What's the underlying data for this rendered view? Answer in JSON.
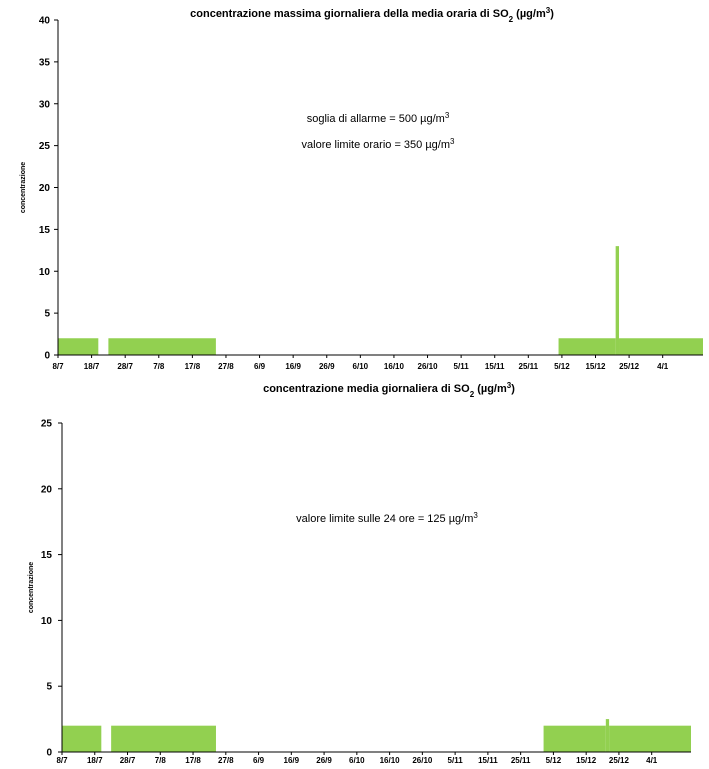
{
  "chart_data": [
    {
      "type": "bar",
      "title": "concentrazione massima giornaliera della media oraria di SO",
      "title_sub": "2",
      "title_unit": " (µg/m",
      "title_sup": "3",
      "title_end": ")",
      "ylabel": "concentrazione",
      "ylim": [
        0,
        40
      ],
      "yticks": [
        0,
        5,
        10,
        15,
        20,
        25,
        30,
        35,
        40
      ],
      "xlabels": [
        "8/7",
        "18/7",
        "28/7",
        "7/8",
        "17/8",
        "27/8",
        "6/9",
        "16/9",
        "26/9",
        "6/10",
        "16/10",
        "26/10",
        "5/11",
        "15/11",
        "25/11",
        "5/12",
        "15/12",
        "25/12",
        "4/1"
      ],
      "annotations": [
        {
          "text": "soglia di allarme  = 500 µg/m",
          "sup": "3"
        },
        {
          "text": "valore limite  orario = 350 µg/m",
          "sup": "3"
        }
      ],
      "bar_color": "#92d050",
      "series": [
        {
          "segments": [
            {
              "from": "8/7",
              "to": "20/7",
              "value": 2
            },
            {
              "from": "23/7",
              "to": "24/8",
              "value": 2
            },
            {
              "from": "4/12",
              "to": "21/12",
              "value": 2
            },
            {
              "from": "21/12",
              "to": "22/12",
              "value": 13
            },
            {
              "from": "22/12",
              "to": "16/1",
              "value": 2
            }
          ]
        }
      ]
    },
    {
      "type": "bar",
      "title": "concentrazione media giornaliera di SO",
      "title_sub": "2",
      "title_unit": " (µg/m",
      "title_sup": "3",
      "title_end": ")",
      "ylabel": "concentrazione",
      "ylim": [
        0,
        25
      ],
      "yticks": [
        0,
        5,
        10,
        15,
        20,
        25
      ],
      "xlabels": [
        "8/7",
        "18/7",
        "28/7",
        "7/8",
        "17/8",
        "27/8",
        "6/9",
        "16/9",
        "26/9",
        "6/10",
        "16/10",
        "26/10",
        "5/11",
        "15/11",
        "25/11",
        "5/12",
        "15/12",
        "25/12",
        "4/1"
      ],
      "annotations": [
        {
          "text": "valore limite  sulle 24 ore = 125 µg/m",
          "sup": "3"
        }
      ],
      "bar_color": "#92d050",
      "series": [
        {
          "segments": [
            {
              "from": "8/7",
              "to": "20/7",
              "value": 2
            },
            {
              "from": "23/7",
              "to": "24/8",
              "value": 2
            },
            {
              "from": "2/12",
              "to": "21/12",
              "value": 2
            },
            {
              "from": "21/12",
              "to": "22/12",
              "value": 2.5
            },
            {
              "from": "22/12",
              "to": "16/1",
              "value": 2
            }
          ]
        }
      ]
    }
  ]
}
